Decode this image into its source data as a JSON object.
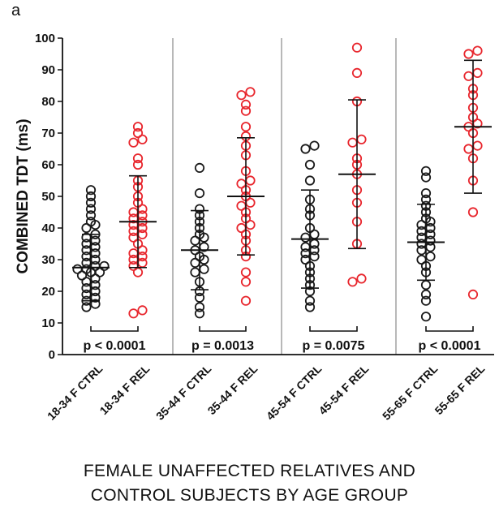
{
  "panel_label": "a",
  "chart_data": {
    "type": "scatter",
    "ylabel": "COMBINED TDT (ms)",
    "xlabel_lines": [
      "FEMALE UNAFFECTED RELATIVES AND",
      "CONTROL SUBJECTS BY AGE GROUP"
    ],
    "ylim": [
      0,
      100
    ],
    "yticks": [
      "0",
      "10",
      "20",
      "30",
      "40",
      "50",
      "60",
      "70",
      "80",
      "90",
      "100"
    ],
    "categories": [
      "18-34 F CTRL",
      "18-34 F REL",
      "35-44 F CTRL",
      "35-44 F REL",
      "45-54 F CTRL",
      "45-54 F REL",
      "55-65 F CTRL",
      "55-65 F REL"
    ],
    "colors": {
      "ctrl": "#1a1a1a",
      "rel": "#e8262d"
    },
    "groups": [
      {
        "category": "18-34 F CTRL",
        "kind": "ctrl",
        "mean": 27.5,
        "sd_low": 17,
        "sd_high": 38,
        "points": [
          52,
          50,
          48,
          46,
          44,
          42,
          41,
          40,
          38,
          37,
          36,
          35,
          34,
          33,
          32,
          31,
          30,
          29,
          28,
          28,
          27,
          27,
          26,
          26,
          25,
          24,
          23,
          22,
          21,
          20,
          19,
          18,
          17,
          16,
          15
        ]
      },
      {
        "category": "18-34 F REL",
        "kind": "rel",
        "mean": 42,
        "sd_low": 27.5,
        "sd_high": 56.5,
        "points": [
          72,
          70,
          68,
          67,
          62,
          60,
          55,
          53,
          50,
          48,
          46,
          45,
          44,
          43,
          42,
          41,
          40,
          39,
          38,
          37,
          35,
          33,
          32,
          31,
          30,
          29,
          28,
          26,
          14,
          13
        ]
      },
      {
        "category": "35-44 F CTRL",
        "kind": "ctrl",
        "mean": 33,
        "sd_low": 20.5,
        "sd_high": 45.5,
        "points": [
          59,
          51,
          46,
          44,
          42,
          40,
          38,
          37,
          36,
          34,
          33,
          31,
          30,
          29,
          27,
          26,
          23,
          20,
          18,
          15,
          13
        ]
      },
      {
        "category": "35-44 F REL",
        "kind": "rel",
        "mean": 50,
        "sd_low": 31.5,
        "sd_high": 68.5,
        "points": [
          83,
          82,
          79,
          77,
          72,
          69,
          66,
          63,
          58,
          55,
          54,
          52,
          50,
          48,
          47,
          45,
          43,
          41,
          40,
          38,
          36,
          33,
          31,
          26,
          23,
          17
        ]
      },
      {
        "category": "45-54 F CTRL",
        "kind": "ctrl",
        "mean": 36.5,
        "sd_low": 21,
        "sd_high": 52,
        "points": [
          66,
          65,
          60,
          55,
          49,
          46,
          44,
          40,
          38,
          37,
          35,
          34,
          33,
          32,
          31,
          30,
          28,
          26,
          24,
          22,
          20,
          17,
          15
        ]
      },
      {
        "category": "45-54 F REL",
        "kind": "rel",
        "mean": 57,
        "sd_low": 33.5,
        "sd_high": 80.5,
        "points": [
          97,
          89,
          80,
          68,
          67,
          62,
          60,
          57,
          52,
          48,
          42,
          35,
          24,
          23
        ]
      },
      {
        "category": "55-65 F CTRL",
        "kind": "ctrl",
        "mean": 35.5,
        "sd_low": 23.5,
        "sd_high": 47.5,
        "points": [
          58,
          56,
          51,
          49,
          47,
          45,
          43,
          42,
          41,
          40,
          39,
          38,
          37,
          36,
          35,
          34,
          33,
          31,
          30,
          28,
          26,
          22,
          19,
          17,
          12
        ]
      },
      {
        "category": "55-65 F REL",
        "kind": "rel",
        "mean": 72,
        "sd_low": 51,
        "sd_high": 93,
        "points": [
          96,
          95,
          89,
          88,
          84,
          82,
          78,
          75,
          73,
          72,
          70,
          66,
          65,
          62,
          55,
          45,
          19
        ]
      }
    ],
    "comparisons": [
      {
        "groups": [
          "18-34 F CTRL",
          "18-34 F REL"
        ],
        "label": "p < 0.0001"
      },
      {
        "groups": [
          "35-44 F CTRL",
          "35-44 F REL"
        ],
        "label": "p = 0.0013"
      },
      {
        "groups": [
          "45-54 F CTRL",
          "45-54 F REL"
        ],
        "label": "p = 0.0075"
      },
      {
        "groups": [
          "55-65 F CTRL",
          "55-65 F REL"
        ],
        "label": "p < 0.0001"
      }
    ]
  }
}
